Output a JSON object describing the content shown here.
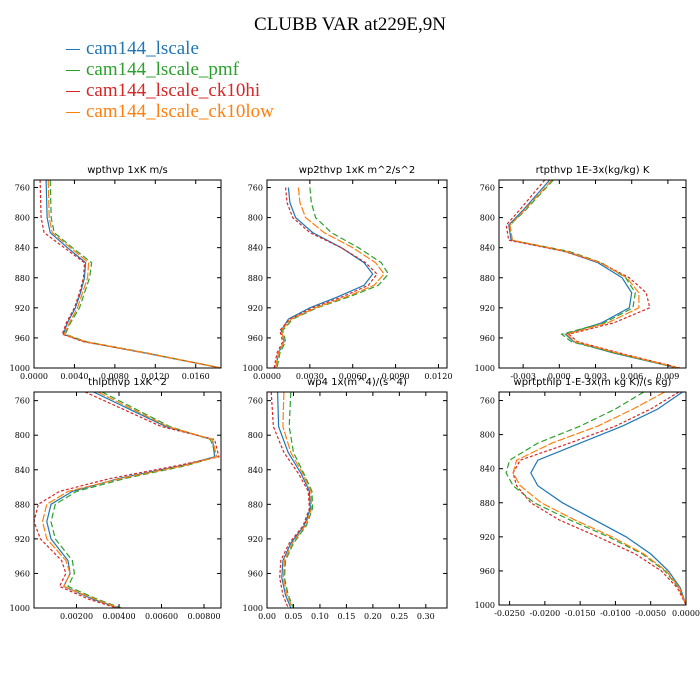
{
  "figure": {
    "title": "CLUBB VAR at229E,9N",
    "legend": [
      {
        "label": "cam144_lscale",
        "color": "#1f77b4"
      },
      {
        "label": "cam144_lscale_pmf",
        "color": "#2ca02c"
      },
      {
        "label": "cam144_lscale_ck10hi",
        "color": "#d62728"
      },
      {
        "label": "cam144_lscale_ck10low",
        "color": "#ff7f0e"
      }
    ]
  },
  "chart_data": [
    {
      "type": "line",
      "title": "wpthvp 1xK m/s",
      "ylim": [
        1000,
        750
      ],
      "y_ticks": [
        760,
        800,
        840,
        880,
        920,
        960,
        1000
      ],
      "xlim": [
        0,
        0.0185
      ],
      "x_ticks": [
        0.0,
        0.004,
        0.008,
        0.012,
        0.016
      ],
      "x_tick_labels": [
        "0.0000",
        "0.0040",
        "0.0080",
        "0.0120",
        "0.0160"
      ],
      "y": [
        750,
        800,
        820,
        840,
        860,
        880,
        900,
        920,
        940,
        955,
        965,
        980,
        1000
      ],
      "series": [
        {
          "name": "cam144_lscale",
          "values": [
            0.0012,
            0.0013,
            0.0016,
            0.0033,
            0.0051,
            0.005,
            0.0046,
            0.0041,
            0.0033,
            0.0029,
            0.005,
            0.011,
            0.0185
          ]
        },
        {
          "name": "cam144_lscale_pmf",
          "values": [
            0.0016,
            0.0017,
            0.002,
            0.0038,
            0.0057,
            0.0055,
            0.005,
            0.0045,
            0.0036,
            0.0031,
            0.0052,
            0.0112,
            0.0185
          ]
        },
        {
          "name": "cam144_lscale_ck10hi",
          "values": [
            0.0006,
            0.0007,
            0.001,
            0.003,
            0.005,
            0.0049,
            0.0045,
            0.004,
            0.0032,
            0.0028,
            0.0049,
            0.011,
            0.0185
          ]
        },
        {
          "name": "cam144_lscale_ck10low",
          "values": [
            0.0014,
            0.0015,
            0.0018,
            0.0036,
            0.0054,
            0.0053,
            0.0048,
            0.0043,
            0.0035,
            0.003,
            0.0051,
            0.0111,
            0.0185
          ]
        }
      ]
    },
    {
      "type": "line",
      "title": "wp2thvp 1xK m^2/s^2",
      "ylim": [
        1000,
        750
      ],
      "y_ticks": [
        760,
        800,
        840,
        880,
        920,
        960,
        1000
      ],
      "xlim": [
        0,
        0.0126
      ],
      "x_ticks": [
        0.0,
        0.003,
        0.006,
        0.009,
        0.012
      ],
      "x_tick_labels": [
        "0.0000",
        "0.0030",
        "0.0060",
        "0.0090",
        "0.0120"
      ],
      "y": [
        760,
        780,
        800,
        820,
        840,
        860,
        875,
        890,
        905,
        920,
        935,
        950,
        965,
        980,
        1000
      ],
      "series": [
        {
          "name": "cam144_lscale",
          "values": [
            0.0015,
            0.0016,
            0.002,
            0.0032,
            0.0052,
            0.0068,
            0.0074,
            0.0068,
            0.005,
            0.003,
            0.0015,
            0.001,
            0.0012,
            0.0008,
            0.0006
          ]
        },
        {
          "name": "cam144_lscale_pmf",
          "values": [
            0.003,
            0.0031,
            0.0034,
            0.0045,
            0.0064,
            0.008,
            0.0085,
            0.0078,
            0.0058,
            0.0035,
            0.0018,
            0.0011,
            0.0013,
            0.0009,
            0.0007
          ]
        },
        {
          "name": "cam144_lscale_ck10hi",
          "values": [
            0.0013,
            0.0014,
            0.0018,
            0.003,
            0.0052,
            0.0069,
            0.0077,
            0.0071,
            0.0053,
            0.0032,
            0.0016,
            0.0009,
            0.0011,
            0.0007,
            0.0005
          ]
        },
        {
          "name": "cam144_lscale_ck10low",
          "values": [
            0.0022,
            0.0023,
            0.0027,
            0.004,
            0.006,
            0.0076,
            0.0082,
            0.0075,
            0.0056,
            0.0034,
            0.0017,
            0.001,
            0.0012,
            0.0008,
            0.0006
          ]
        }
      ]
    },
    {
      "type": "line",
      "title": "rtpthvp 1E-3x(kg/kg) K",
      "ylim": [
        1000,
        750
      ],
      "y_ticks": [
        760,
        800,
        840,
        880,
        920,
        960,
        1000
      ],
      "xlim": [
        -0.005,
        0.0105
      ],
      "x_ticks": [
        -0.003,
        0.0,
        0.003,
        0.006,
        0.009
      ],
      "x_tick_labels": [
        "-0.003",
        "0.000",
        "0.003",
        "0.006",
        "0.009"
      ],
      "y": [
        750,
        790,
        810,
        830,
        845,
        860,
        880,
        900,
        920,
        940,
        955,
        965,
        980,
        1000
      ],
      "series": [
        {
          "name": "cam144_lscale",
          "values": [
            -0.0008,
            -0.003,
            -0.0042,
            -0.004,
            0.0005,
            0.0032,
            0.0052,
            0.006,
            0.0058,
            0.0035,
            0.0005,
            0.0012,
            0.0045,
            0.0098
          ]
        },
        {
          "name": "cam144_lscale_pmf",
          "values": [
            -0.0005,
            -0.0028,
            -0.0041,
            -0.0039,
            0.0008,
            0.0035,
            0.0055,
            0.0063,
            0.0061,
            0.0037,
            0.0002,
            0.001,
            0.0046,
            0.0098
          ]
        },
        {
          "name": "cam144_lscale_ck10hi",
          "values": [
            -0.0012,
            -0.0033,
            -0.0044,
            -0.0042,
            0.0004,
            0.0034,
            0.0058,
            0.0072,
            0.0075,
            0.0045,
            0.0008,
            0.0015,
            0.005,
            0.01
          ]
        },
        {
          "name": "cam144_lscale_ck10low",
          "values": [
            -0.0006,
            -0.0029,
            -0.0041,
            -0.0039,
            0.0006,
            0.0034,
            0.0056,
            0.0066,
            0.0066,
            0.004,
            0.0006,
            0.0013,
            0.0048,
            0.0099
          ]
        }
      ]
    },
    {
      "type": "line",
      "title": "thlpthvp 1xK^2",
      "ylim": [
        1000,
        750
      ],
      "y_ticks": [
        760,
        800,
        840,
        880,
        920,
        960,
        1000
      ],
      "xlim": [
        0,
        0.0088
      ],
      "x_ticks": [
        0.002,
        0.004,
        0.006,
        0.008
      ],
      "x_tick_labels": [
        "0.00200",
        "0.00400",
        "0.00600",
        "0.00800"
      ],
      "y": [
        750,
        790,
        805,
        825,
        835,
        850,
        865,
        880,
        900,
        920,
        945,
        960,
        975,
        990,
        1000
      ],
      "series": [
        {
          "name": "cam144_lscale",
          "values": [
            0.0028,
            0.0062,
            0.0084,
            0.0085,
            0.007,
            0.004,
            0.0018,
            0.0008,
            0.0006,
            0.0008,
            0.0016,
            0.0017,
            0.0014,
            0.0028,
            0.004
          ]
        },
        {
          "name": "cam144_lscale_pmf",
          "values": [
            0.0032,
            0.0064,
            0.0083,
            0.0086,
            0.0072,
            0.0043,
            0.002,
            0.001,
            0.0008,
            0.001,
            0.0018,
            0.0019,
            0.0016,
            0.003,
            0.0041
          ]
        },
        {
          "name": "cam144_lscale_ck10hi",
          "values": [
            0.0024,
            0.006,
            0.0085,
            0.0087,
            0.0068,
            0.0036,
            0.0012,
            0.0002,
            0.0,
            0.0003,
            0.0013,
            0.0015,
            0.0012,
            0.0026,
            0.0039
          ]
        },
        {
          "name": "cam144_lscale_ck10low",
          "values": [
            0.003,
            0.0063,
            0.0084,
            0.0086,
            0.0071,
            0.0041,
            0.0016,
            0.0006,
            0.0004,
            0.0006,
            0.0015,
            0.0017,
            0.0014,
            0.0029,
            0.004
          ]
        }
      ]
    },
    {
      "type": "line",
      "title": "wp4 1x(m^4)/(s^4)",
      "ylim": [
        1000,
        750
      ],
      "y_ticks": [
        760,
        800,
        840,
        880,
        920,
        960,
        1000
      ],
      "xlim": [
        0,
        0.34
      ],
      "x_ticks": [
        0.0,
        0.05,
        0.1,
        0.15,
        0.2,
        0.25,
        0.3
      ],
      "x_tick_labels": [
        "0.00",
        "0.05",
        "0.10",
        "0.15",
        "0.20",
        "0.25",
        "0.30"
      ],
      "y": [
        750,
        790,
        820,
        845,
        865,
        885,
        905,
        925,
        945,
        965,
        985,
        1000
      ],
      "series": [
        {
          "name": "cam144_lscale",
          "values": [
            0.02,
            0.022,
            0.04,
            0.065,
            0.08,
            0.082,
            0.07,
            0.045,
            0.03,
            0.028,
            0.035,
            0.045
          ]
        },
        {
          "name": "cam144_lscale_pmf",
          "values": [
            0.045,
            0.042,
            0.05,
            0.07,
            0.085,
            0.086,
            0.074,
            0.05,
            0.035,
            0.033,
            0.04,
            0.05
          ]
        },
        {
          "name": "cam144_lscale_ck10hi",
          "values": [
            0.008,
            0.012,
            0.032,
            0.06,
            0.078,
            0.08,
            0.068,
            0.042,
            0.026,
            0.024,
            0.03,
            0.04
          ]
        },
        {
          "name": "cam144_lscale_ck10low",
          "values": [
            0.032,
            0.03,
            0.045,
            0.068,
            0.083,
            0.084,
            0.072,
            0.048,
            0.033,
            0.031,
            0.038,
            0.048
          ]
        }
      ]
    },
    {
      "type": "line",
      "title": "wprtpthlp 1-E-3x(m kg K)/(s kg)",
      "ylim": [
        1000,
        750
      ],
      "y_ticks": [
        760,
        800,
        840,
        880,
        920,
        960,
        1000
      ],
      "xlim": [
        -0.0265,
        0.0
      ],
      "x_ticks": [
        -0.025,
        -0.02,
        -0.015,
        -0.01,
        -0.005,
        0.0
      ],
      "x_tick_labels": [
        "-0.0250",
        "-0.0200",
        "-0.0150",
        "-0.0100",
        "-0.0050",
        "0.0000"
      ],
      "y": [
        750,
        770,
        790,
        810,
        830,
        845,
        860,
        880,
        900,
        920,
        940,
        960,
        980,
        1000
      ],
      "series": [
        {
          "name": "cam144_lscale",
          "values": [
            -0.0005,
            -0.004,
            -0.009,
            -0.015,
            -0.021,
            -0.022,
            -0.021,
            -0.0175,
            -0.013,
            -0.0085,
            -0.005,
            -0.0025,
            -0.0008,
            0.0
          ]
        },
        {
          "name": "cam144_lscale_pmf",
          "values": [
            -0.006,
            -0.01,
            -0.015,
            -0.021,
            -0.025,
            -0.0255,
            -0.0245,
            -0.0215,
            -0.0165,
            -0.011,
            -0.0062,
            -0.003,
            -0.001,
            0.0
          ]
        },
        {
          "name": "cam144_lscale_ck10hi",
          "values": [
            -0.001,
            -0.005,
            -0.01,
            -0.0165,
            -0.0235,
            -0.0245,
            -0.024,
            -0.022,
            -0.018,
            -0.0125,
            -0.0072,
            -0.0035,
            -0.0012,
            0.0
          ]
        },
        {
          "name": "cam144_lscale_ck10low",
          "values": [
            -0.003,
            -0.0075,
            -0.0125,
            -0.019,
            -0.024,
            -0.0245,
            -0.0235,
            -0.0205,
            -0.0158,
            -0.0105,
            -0.006,
            -0.0028,
            -0.0009,
            0.0
          ]
        }
      ]
    }
  ]
}
